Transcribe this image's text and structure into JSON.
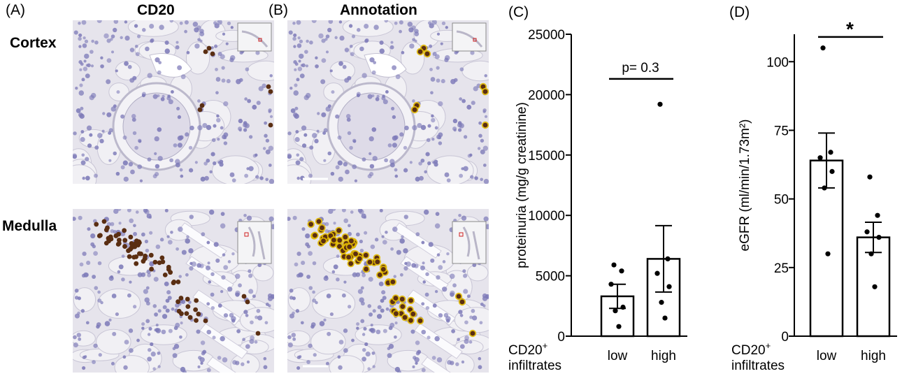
{
  "panels": {
    "a": {
      "letter": "(A)",
      "title": "CD20"
    },
    "b": {
      "letter": "(B)",
      "title": "Annotation"
    },
    "c": {
      "letter": "(C)"
    },
    "d": {
      "letter": "(D)"
    }
  },
  "rows": {
    "cortex": "Cortex",
    "medulla": "Medulla"
  },
  "image_colors": {
    "tissue": "#e6e4ec",
    "nuclei": "#7d7ab8",
    "cd20_stain": "#5a2e12",
    "annotation": "#e0b800"
  },
  "chart_data": [
    {
      "type": "bar",
      "panel": "(C)",
      "categories": [
        "low",
        "high"
      ],
      "xlabel": "CD20⁺ infiltrates",
      "ylabel": "proteinuria (mg/g creatinine)",
      "ylim": [
        0,
        25000
      ],
      "yticks": [
        0,
        5000,
        10000,
        15000,
        20000,
        25000
      ],
      "means": [
        3300,
        6400
      ],
      "sem": [
        1000,
        2750
      ],
      "points": [
        [
          5900,
          5400,
          4300,
          2400,
          2100,
          800
        ],
        [
          19200,
          6400,
          5200,
          4100,
          2800,
          1500
        ]
      ],
      "significance": {
        "label": "p= 0.3",
        "from": "low",
        "to": "high",
        "y": 21300
      }
    },
    {
      "type": "bar",
      "panel": "(D)",
      "categories": [
        "low",
        "high"
      ],
      "xlabel": "CD20⁺ infiltrates",
      "ylabel": "eGFR (ml/min/1.73m²)",
      "ylim": [
        0,
        110
      ],
      "yticks": [
        0,
        25,
        50,
        75,
        100
      ],
      "means": [
        64,
        36
      ],
      "sem": [
        10,
        5.5
      ],
      "points": [
        [
          105,
          67,
          65,
          60,
          54,
          30
        ],
        [
          58,
          44,
          38,
          36,
          30,
          18
        ]
      ],
      "significance": {
        "label": "*",
        "from": "low",
        "to": "high",
        "y": 109
      }
    }
  ]
}
